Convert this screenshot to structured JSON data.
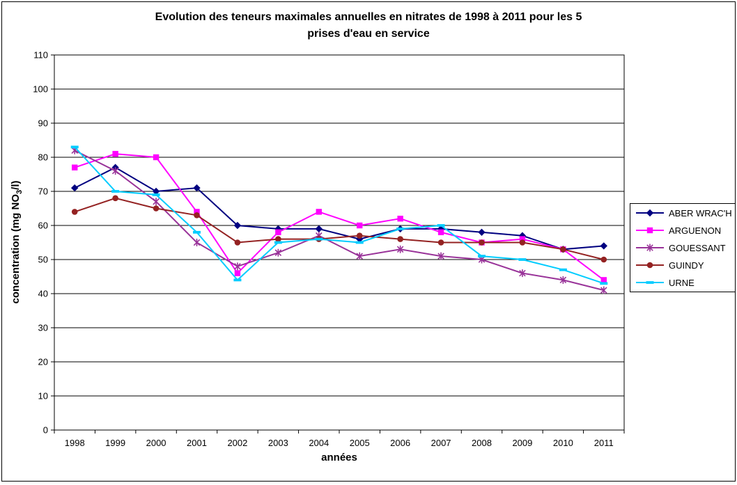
{
  "title": {
    "line1": "Evolution des teneurs maximales annuelles en nitrates de 1998 à 2011 pour les 5",
    "line2": "prises d'eau en service"
  },
  "chart_data": {
    "type": "line",
    "x": [
      "1998",
      "1999",
      "2000",
      "2001",
      "2002",
      "2003",
      "2004",
      "2005",
      "2006",
      "2007",
      "2008",
      "2009",
      "2010",
      "2011"
    ],
    "xlabel": "années",
    "ylabel": {
      "prefix": "concentration (mg NO",
      "sub": "3",
      "suffix": "/l)",
      "full": "concentration (mg NO3/l)"
    },
    "ylim": [
      0,
      110
    ],
    "ytick_step": 10,
    "grid": true,
    "legend_position": "right",
    "axis_color": "#000000",
    "background": "#ffffff",
    "series": [
      {
        "name": "ABER WRAC'H",
        "color": "#000080",
        "marker": "diamond",
        "values": [
          71,
          77,
          70,
          71,
          60,
          59,
          59,
          56,
          59,
          59,
          58,
          57,
          53,
          54
        ]
      },
      {
        "name": "ARGUENON",
        "color": "#FF00FF",
        "marker": "square",
        "values": [
          77,
          81,
          80,
          64,
          46,
          58,
          64,
          60,
          62,
          58,
          55,
          56,
          53,
          44
        ]
      },
      {
        "name": "GOUESSANT",
        "color": "#993399",
        "marker": "asterisk",
        "values": [
          82,
          76,
          67,
          55,
          48,
          52,
          57,
          51,
          53,
          51,
          50,
          46,
          44,
          41
        ]
      },
      {
        "name": "GUINDY",
        "color": "#942222",
        "marker": "circle",
        "values": [
          64,
          68,
          65,
          63,
          55,
          56,
          56,
          57,
          56,
          55,
          55,
          55,
          53,
          50
        ]
      },
      {
        "name": "URNE",
        "color": "#00CCFF",
        "marker": "dash",
        "values": [
          83,
          70,
          69,
          58,
          44,
          55,
          56,
          55,
          59,
          60,
          51,
          50,
          47,
          43
        ]
      }
    ]
  }
}
